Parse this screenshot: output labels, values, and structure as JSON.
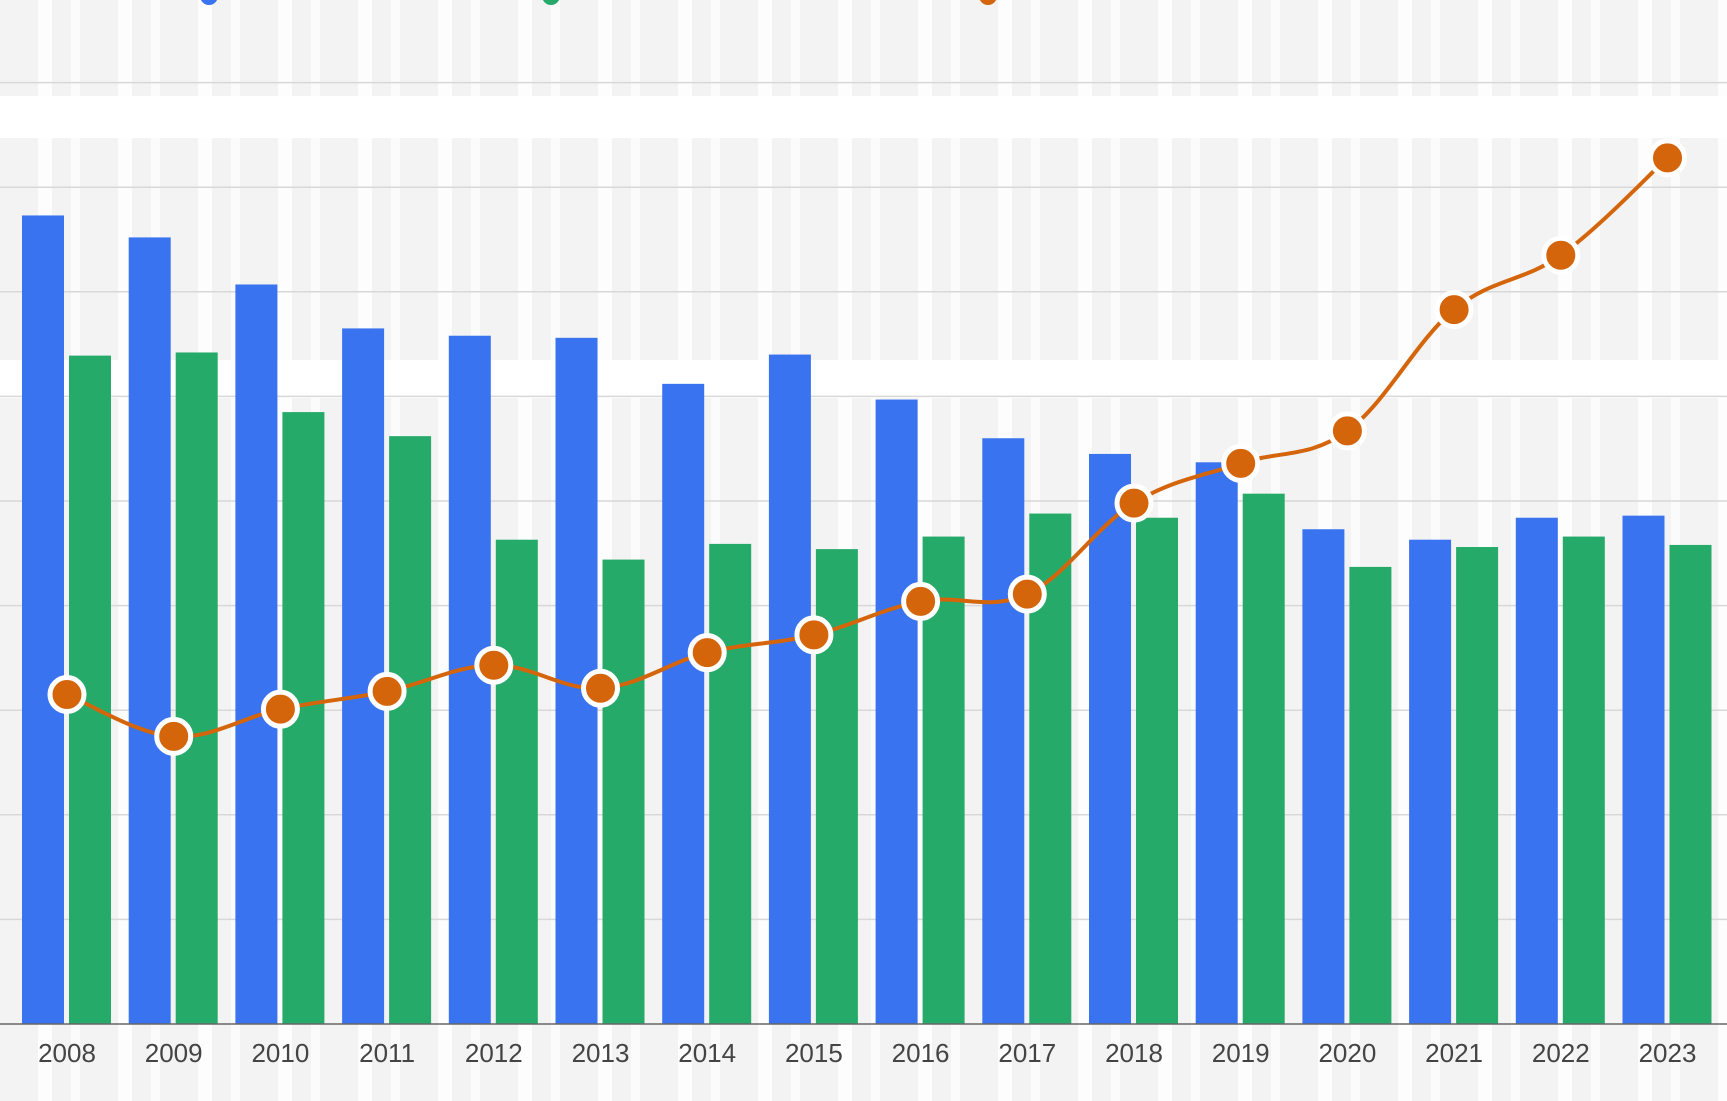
{
  "chart_data": {
    "type": "bar",
    "title": "",
    "xlabel": "",
    "ylabel": "",
    "categories": [
      "2008",
      "2009",
      "2010",
      "2011",
      "2012",
      "2013",
      "2014",
      "2015",
      "2016",
      "2017",
      "2018",
      "2019",
      "2020",
      "2021",
      "2022",
      "2023"
    ],
    "series": [
      {
        "kind": "bar",
        "color": "#3a73f0",
        "values": [
          7.73,
          7.52,
          7.07,
          6.65,
          6.58,
          6.56,
          6.12,
          6.4,
          5.97,
          5.6,
          5.45,
          5.37,
          4.73,
          4.63,
          4.84,
          4.86
        ]
      },
      {
        "kind": "bar",
        "color": "#26aa6a",
        "values": [
          6.39,
          6.42,
          5.85,
          5.62,
          4.63,
          4.44,
          4.59,
          4.54,
          4.66,
          4.88,
          4.84,
          5.07,
          4.37,
          4.56,
          4.66,
          4.58
        ]
      },
      {
        "kind": "line",
        "axis": "right",
        "color": "#d4650a",
        "values": [
          3.15,
          2.75,
          3.01,
          3.18,
          3.43,
          3.21,
          3.55,
          3.72,
          4.04,
          4.11,
          4.98,
          5.36,
          5.67,
          6.83,
          7.35,
          8.28
        ]
      }
    ],
    "ylim": [
      0,
      9
    ],
    "grid": true,
    "legend": "top",
    "note_units": "values in gridline steps; axis tick labels cropped out of view"
  }
}
